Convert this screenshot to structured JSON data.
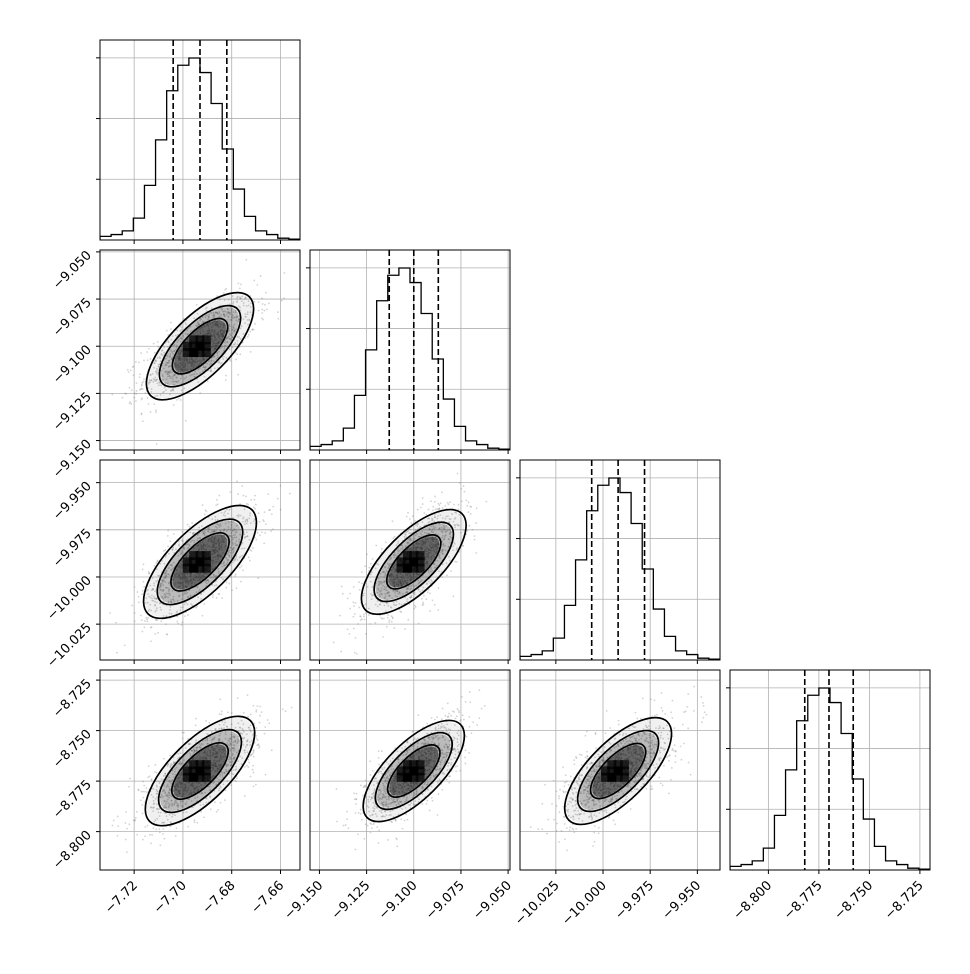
{
  "chart_data": {
    "type": "corner",
    "grid": true,
    "colors": {
      "line": "#000000",
      "grid": "#b0b0b0",
      "points": "#808080",
      "fill": "#000000"
    },
    "parameters": [
      {
        "center": -7.693,
        "sigma": 0.0115,
        "quantiles": [
          -7.704,
          -7.693,
          -7.682
        ],
        "range": [
          -7.734,
          -7.652
        ],
        "ticks": [
          -7.72,
          -7.7,
          -7.68,
          -7.66
        ],
        "tick_labels": [
          "−7.72",
          "−7.70",
          "−7.68",
          "−7.66"
        ]
      },
      {
        "center": -9.1,
        "sigma": 0.0127,
        "quantiles": [
          -9.113,
          -9.1,
          -9.087
        ],
        "range": [
          -9.155,
          -9.049
        ],
        "ticks": [
          -9.15,
          -9.125,
          -9.1,
          -9.075,
          -9.05
        ],
        "tick_labels": [
          "−9.150",
          "−9.125",
          "−9.100",
          "−9.075",
          "−9.050"
        ]
      },
      {
        "center": -9.992,
        "sigma": 0.0142,
        "quantiles": [
          -10.006,
          -9.992,
          -9.978
        ],
        "range": [
          -10.044,
          -9.938
        ],
        "ticks": [
          -10.025,
          -10.0,
          -9.975,
          -9.95
        ],
        "tick_labels": [
          "−10.025",
          "−10.000",
          "−9.975",
          "−9.950"
        ]
      },
      {
        "center": -8.77,
        "sigma": 0.0124,
        "quantiles": [
          -8.782,
          -8.77,
          -8.758
        ],
        "range": [
          -8.819,
          -8.72
        ],
        "ticks": [
          -8.8,
          -8.775,
          -8.75,
          -8.725
        ],
        "tick_labels": [
          "−8.800",
          "−8.775",
          "−8.750",
          "−8.725"
        ]
      }
    ],
    "histogram": {
      "bin_counts_relative": [
        0.02,
        0.03,
        0.05,
        0.12,
        0.3,
        0.55,
        0.82,
        0.96,
        1.0,
        0.92,
        0.75,
        0.5,
        0.28,
        0.13,
        0.05,
        0.03,
        0.01,
        0.005
      ],
      "bins": 18
    },
    "correlation": 0.7,
    "contour_levels_sigma": [
      1.0,
      1.5,
      2.0
    ]
  }
}
